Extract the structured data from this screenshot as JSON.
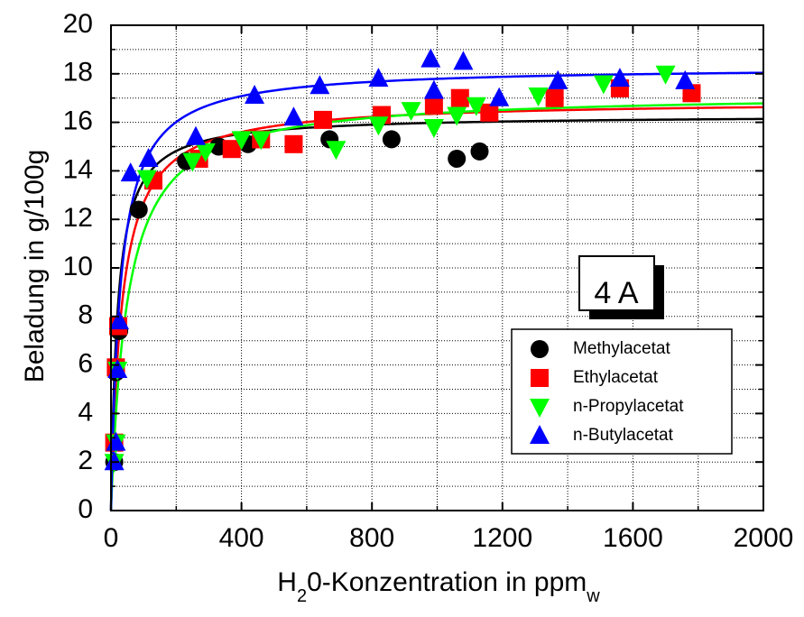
{
  "chart_data": {
    "type": "scatter",
    "xlabel_main": "H",
    "xlabel_sub": "2",
    "xlabel_rest": "0-Konzentration in ppm",
    "xlabel_unit_sub": "w",
    "ylabel": "Beladung in g/100g",
    "xlim": [
      0,
      2000
    ],
    "ylim": [
      0,
      20
    ],
    "x_ticks": [
      "0",
      "400",
      "800",
      "1200",
      "1600",
      "2000"
    ],
    "x_tick_values": [
      0,
      400,
      800,
      1200,
      1600,
      2000
    ],
    "y_ticks": [
      "0",
      "2",
      "4",
      "6",
      "8",
      "10",
      "12",
      "14",
      "16",
      "18",
      "20"
    ],
    "y_tick_values": [
      0,
      2,
      4,
      6,
      8,
      10,
      12,
      14,
      16,
      18,
      20
    ],
    "grid": true,
    "legend_position": "lower-right",
    "annotation": "4 A",
    "series": [
      {
        "name": "Methylacetat",
        "marker": "circle",
        "color": "#000000",
        "points": [
          [
            10,
            2.0
          ],
          [
            15,
            5.7
          ],
          [
            25,
            7.4
          ],
          [
            85,
            12.4
          ],
          [
            230,
            14.4
          ],
          [
            330,
            15.0
          ],
          [
            420,
            15.1
          ],
          [
            670,
            15.3
          ],
          [
            860,
            15.3
          ],
          [
            1060,
            14.5
          ],
          [
            1130,
            14.8
          ]
        ],
        "fit": {
          "qmax": 16.3,
          "K": 0.05
        }
      },
      {
        "name": "Ethylacetat",
        "marker": "square",
        "color": "#ff0000",
        "points": [
          [
            10,
            2.8
          ],
          [
            15,
            5.9
          ],
          [
            22,
            7.6
          ],
          [
            130,
            13.6
          ],
          [
            270,
            14.5
          ],
          [
            370,
            14.9
          ],
          [
            460,
            15.3
          ],
          [
            560,
            15.1
          ],
          [
            650,
            16.1
          ],
          [
            830,
            16.3
          ],
          [
            990,
            16.7
          ],
          [
            1070,
            17.0
          ],
          [
            1160,
            16.4
          ],
          [
            1360,
            17.0
          ],
          [
            1560,
            17.4
          ],
          [
            1780,
            17.2
          ]
        ],
        "fit": {
          "qmax": 16.9,
          "K": 0.03
        }
      },
      {
        "name": "n-Propylacetat",
        "marker": "triangle-down",
        "color": "#00ff00",
        "points": [
          [
            10,
            2.0
          ],
          [
            15,
            2.8
          ],
          [
            20,
            5.8
          ],
          [
            110,
            13.7
          ],
          [
            250,
            14.4
          ],
          [
            290,
            14.8
          ],
          [
            400,
            15.3
          ],
          [
            460,
            15.3
          ],
          [
            690,
            14.9
          ],
          [
            820,
            15.9
          ],
          [
            920,
            16.5
          ],
          [
            990,
            15.8
          ],
          [
            1060,
            16.3
          ],
          [
            1120,
            16.7
          ],
          [
            1310,
            17.1
          ],
          [
            1510,
            17.6
          ],
          [
            1700,
            18.0
          ]
        ],
        "fit": {
          "qmax": 17.2,
          "K": 0.02
        }
      },
      {
        "name": "n-Butylacetat",
        "marker": "triangle-up",
        "color": "#0000ff",
        "points": [
          [
            10,
            2.0
          ],
          [
            15,
            2.8
          ],
          [
            20,
            5.8
          ],
          [
            25,
            7.8
          ],
          [
            60,
            13.9
          ],
          [
            115,
            14.5
          ],
          [
            260,
            15.4
          ],
          [
            440,
            17.1
          ],
          [
            560,
            16.2
          ],
          [
            640,
            17.5
          ],
          [
            820,
            17.8
          ],
          [
            980,
            18.6
          ],
          [
            990,
            17.3
          ],
          [
            1080,
            18.5
          ],
          [
            1190,
            17.0
          ],
          [
            1370,
            17.7
          ],
          [
            1560,
            17.8
          ],
          [
            1760,
            17.7
          ]
        ],
        "fit": {
          "qmax": 18.3,
          "K": 0.035
        }
      }
    ]
  }
}
